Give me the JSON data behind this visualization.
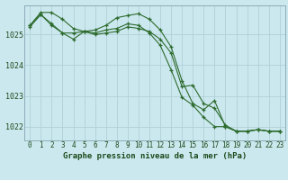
{
  "title": "Graphe pression niveau de la mer (hPa)",
  "background_color": "#cce8ef",
  "grid_color": "#b0d0d8",
  "line_color": "#2d6b2d",
  "xlim": [
    -0.5,
    23.5
  ],
  "ylim": [
    1021.55,
    1025.95
  ],
  "yticks": [
    1022,
    1023,
    1024,
    1025
  ],
  "xticks": [
    0,
    1,
    2,
    3,
    4,
    5,
    6,
    7,
    8,
    9,
    10,
    11,
    12,
    13,
    14,
    15,
    16,
    17,
    18,
    19,
    20,
    21,
    22,
    23
  ],
  "series1": [
    1025.3,
    1025.72,
    1025.72,
    1025.5,
    1025.2,
    1025.1,
    1025.15,
    1025.3,
    1025.55,
    1025.62,
    1025.68,
    1025.5,
    1025.15,
    1024.6,
    1023.5,
    1022.75,
    1022.55,
    1022.85,
    1022.0,
    1021.85,
    1021.85,
    1021.9,
    1021.85,
    1021.85
  ],
  "series2": [
    1025.25,
    1025.65,
    1025.3,
    1025.05,
    1024.85,
    1025.1,
    1025.0,
    1025.05,
    1025.1,
    1025.25,
    1025.2,
    1025.1,
    1024.85,
    1024.4,
    1023.3,
    1023.35,
    1022.75,
    1022.6,
    1022.05,
    1021.85,
    1021.85,
    1021.9,
    1021.85,
    1021.85
  ],
  "series3": [
    1025.3,
    1025.65,
    1025.35,
    1025.05,
    1025.05,
    1025.1,
    1025.05,
    1025.15,
    1025.2,
    1025.35,
    1025.3,
    1025.05,
    1024.65,
    1023.85,
    1022.95,
    1022.7,
    1022.3,
    1022.0,
    1022.0,
    1021.85,
    1021.85,
    1021.9,
    1021.85,
    1021.85
  ],
  "tick_fontsize": 5.5,
  "label_fontsize": 6.5,
  "linewidth": 0.8,
  "markersize": 3.5
}
